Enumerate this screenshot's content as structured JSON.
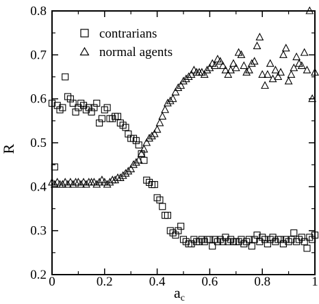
{
  "chart_data": {
    "type": "scatter",
    "xlabel": "a",
    "xlabel_sub": "c",
    "ylabel": "R",
    "xlim": [
      0,
      1
    ],
    "ylim": [
      0.2,
      0.8
    ],
    "xticks": [
      0,
      0.2,
      0.4,
      0.6,
      0.8,
      1
    ],
    "xtick_labels": [
      "0",
      "0.2",
      "0.4",
      "0.6",
      "0.8",
      "1"
    ],
    "yticks": [
      0.2,
      0.3,
      0.4,
      0.5,
      0.6,
      0.7,
      0.8
    ],
    "ytick_labels": [
      "0.2",
      "0.3",
      "0.4",
      "0.5",
      "0.6",
      "0.7",
      "0.8"
    ],
    "grid": false,
    "legend_position": "top-left",
    "series": [
      {
        "name": "contrarians",
        "marker": "square",
        "points": [
          [
            0.0,
            0.59
          ],
          [
            0.01,
            0.445
          ],
          [
            0.02,
            0.585
          ],
          [
            0.03,
            0.575
          ],
          [
            0.04,
            0.58
          ],
          [
            0.05,
            0.65
          ],
          [
            0.06,
            0.605
          ],
          [
            0.07,
            0.6
          ],
          [
            0.08,
            0.59
          ],
          [
            0.09,
            0.57
          ],
          [
            0.1,
            0.58
          ],
          [
            0.11,
            0.59
          ],
          [
            0.12,
            0.585
          ],
          [
            0.13,
            0.575
          ],
          [
            0.14,
            0.58
          ],
          [
            0.15,
            0.57
          ],
          [
            0.16,
            0.58
          ],
          [
            0.17,
            0.59
          ],
          [
            0.18,
            0.545
          ],
          [
            0.19,
            0.555
          ],
          [
            0.2,
            0.575
          ],
          [
            0.21,
            0.58
          ],
          [
            0.22,
            0.555
          ],
          [
            0.23,
            0.555
          ],
          [
            0.24,
            0.56
          ],
          [
            0.25,
            0.56
          ],
          [
            0.26,
            0.545
          ],
          [
            0.27,
            0.54
          ],
          [
            0.28,
            0.535
          ],
          [
            0.29,
            0.52
          ],
          [
            0.3,
            0.51
          ],
          [
            0.31,
            0.51
          ],
          [
            0.32,
            0.505
          ],
          [
            0.33,
            0.495
          ],
          [
            0.34,
            0.475
          ],
          [
            0.35,
            0.46
          ],
          [
            0.36,
            0.415
          ],
          [
            0.37,
            0.41
          ],
          [
            0.38,
            0.405
          ],
          [
            0.39,
            0.405
          ],
          [
            0.4,
            0.375
          ],
          [
            0.41,
            0.37
          ],
          [
            0.42,
            0.355
          ],
          [
            0.43,
            0.335
          ],
          [
            0.44,
            0.335
          ],
          [
            0.45,
            0.3
          ],
          [
            0.46,
            0.295
          ],
          [
            0.47,
            0.29
          ],
          [
            0.48,
            0.3
          ],
          [
            0.49,
            0.31
          ],
          [
            0.5,
            0.28
          ],
          [
            0.51,
            0.275
          ],
          [
            0.52,
            0.27
          ],
          [
            0.53,
            0.27
          ],
          [
            0.54,
            0.28
          ],
          [
            0.55,
            0.275
          ],
          [
            0.56,
            0.275
          ],
          [
            0.57,
            0.28
          ],
          [
            0.58,
            0.275
          ],
          [
            0.59,
            0.28
          ],
          [
            0.6,
            0.28
          ],
          [
            0.61,
            0.265
          ],
          [
            0.62,
            0.28
          ],
          [
            0.63,
            0.275
          ],
          [
            0.64,
            0.28
          ],
          [
            0.65,
            0.275
          ],
          [
            0.66,
            0.285
          ],
          [
            0.67,
            0.275
          ],
          [
            0.68,
            0.28
          ],
          [
            0.69,
            0.275
          ],
          [
            0.7,
            0.275
          ],
          [
            0.71,
            0.275
          ],
          [
            0.72,
            0.28
          ],
          [
            0.73,
            0.27
          ],
          [
            0.74,
            0.275
          ],
          [
            0.75,
            0.28
          ],
          [
            0.76,
            0.265
          ],
          [
            0.77,
            0.28
          ],
          [
            0.78,
            0.29
          ],
          [
            0.79,
            0.275
          ],
          [
            0.8,
            0.285
          ],
          [
            0.81,
            0.28
          ],
          [
            0.82,
            0.27
          ],
          [
            0.83,
            0.28
          ],
          [
            0.84,
            0.285
          ],
          [
            0.85,
            0.275
          ],
          [
            0.86,
            0.28
          ],
          [
            0.87,
            0.28
          ],
          [
            0.88,
            0.27
          ],
          [
            0.89,
            0.28
          ],
          [
            0.9,
            0.275
          ],
          [
            0.91,
            0.28
          ],
          [
            0.92,
            0.295
          ],
          [
            0.93,
            0.275
          ],
          [
            0.94,
            0.28
          ],
          [
            0.95,
            0.285
          ],
          [
            0.96,
            0.275
          ],
          [
            0.97,
            0.26
          ],
          [
            0.98,
            0.285
          ],
          [
            0.99,
            0.28
          ],
          [
            1.0,
            0.29
          ]
        ]
      },
      {
        "name": "normal agents",
        "marker": "triangle",
        "points": [
          [
            0.0,
            0.41
          ],
          [
            0.01,
            0.405
          ],
          [
            0.02,
            0.41
          ],
          [
            0.03,
            0.405
          ],
          [
            0.04,
            0.405
          ],
          [
            0.05,
            0.41
          ],
          [
            0.06,
            0.405
          ],
          [
            0.07,
            0.41
          ],
          [
            0.08,
            0.405
          ],
          [
            0.09,
            0.41
          ],
          [
            0.1,
            0.41
          ],
          [
            0.11,
            0.405
          ],
          [
            0.12,
            0.41
          ],
          [
            0.13,
            0.405
          ],
          [
            0.14,
            0.41
          ],
          [
            0.15,
            0.41
          ],
          [
            0.16,
            0.41
          ],
          [
            0.17,
            0.405
          ],
          [
            0.18,
            0.41
          ],
          [
            0.19,
            0.415
          ],
          [
            0.2,
            0.41
          ],
          [
            0.21,
            0.405
          ],
          [
            0.22,
            0.41
          ],
          [
            0.23,
            0.415
          ],
          [
            0.24,
            0.415
          ],
          [
            0.25,
            0.42
          ],
          [
            0.26,
            0.42
          ],
          [
            0.27,
            0.425
          ],
          [
            0.28,
            0.43
          ],
          [
            0.29,
            0.435
          ],
          [
            0.3,
            0.44
          ],
          [
            0.31,
            0.45
          ],
          [
            0.32,
            0.455
          ],
          [
            0.33,
            0.46
          ],
          [
            0.34,
            0.475
          ],
          [
            0.35,
            0.485
          ],
          [
            0.36,
            0.5
          ],
          [
            0.37,
            0.51
          ],
          [
            0.38,
            0.515
          ],
          [
            0.39,
            0.52
          ],
          [
            0.4,
            0.53
          ],
          [
            0.41,
            0.545
          ],
          [
            0.42,
            0.56
          ],
          [
            0.43,
            0.575
          ],
          [
            0.44,
            0.59
          ],
          [
            0.45,
            0.595
          ],
          [
            0.46,
            0.6
          ],
          [
            0.47,
            0.615
          ],
          [
            0.48,
            0.625
          ],
          [
            0.49,
            0.63
          ],
          [
            0.5,
            0.64
          ],
          [
            0.51,
            0.645
          ],
          [
            0.52,
            0.65
          ],
          [
            0.53,
            0.655
          ],
          [
            0.54,
            0.665
          ],
          [
            0.55,
            0.66
          ],
          [
            0.56,
            0.66
          ],
          [
            0.57,
            0.66
          ],
          [
            0.58,
            0.655
          ],
          [
            0.59,
            0.665
          ],
          [
            0.6,
            0.67
          ],
          [
            0.61,
            0.68
          ],
          [
            0.62,
            0.675
          ],
          [
            0.63,
            0.69
          ],
          [
            0.64,
            0.685
          ],
          [
            0.65,
            0.675
          ],
          [
            0.66,
            0.665
          ],
          [
            0.67,
            0.655
          ],
          [
            0.68,
            0.665
          ],
          [
            0.69,
            0.68
          ],
          [
            0.7,
            0.67
          ],
          [
            0.71,
            0.705
          ],
          [
            0.72,
            0.7
          ],
          [
            0.73,
            0.675
          ],
          [
            0.74,
            0.66
          ],
          [
            0.75,
            0.665
          ],
          [
            0.76,
            0.68
          ],
          [
            0.77,
            0.685
          ],
          [
            0.78,
            0.72
          ],
          [
            0.79,
            0.74
          ],
          [
            0.8,
            0.655
          ],
          [
            0.81,
            0.63
          ],
          [
            0.82,
            0.655
          ],
          [
            0.83,
            0.68
          ],
          [
            0.84,
            0.645
          ],
          [
            0.85,
            0.665
          ],
          [
            0.86,
            0.65
          ],
          [
            0.87,
            0.66
          ],
          [
            0.88,
            0.7
          ],
          [
            0.89,
            0.715
          ],
          [
            0.9,
            0.64
          ],
          [
            0.91,
            0.655
          ],
          [
            0.92,
            0.67
          ],
          [
            0.93,
            0.695
          ],
          [
            0.94,
            0.68
          ],
          [
            0.95,
            0.675
          ],
          [
            0.96,
            0.705
          ],
          [
            0.97,
            0.665
          ],
          [
            0.98,
            0.8
          ],
          [
            0.99,
            0.6
          ],
          [
            1.0,
            0.66
          ]
        ]
      }
    ]
  }
}
